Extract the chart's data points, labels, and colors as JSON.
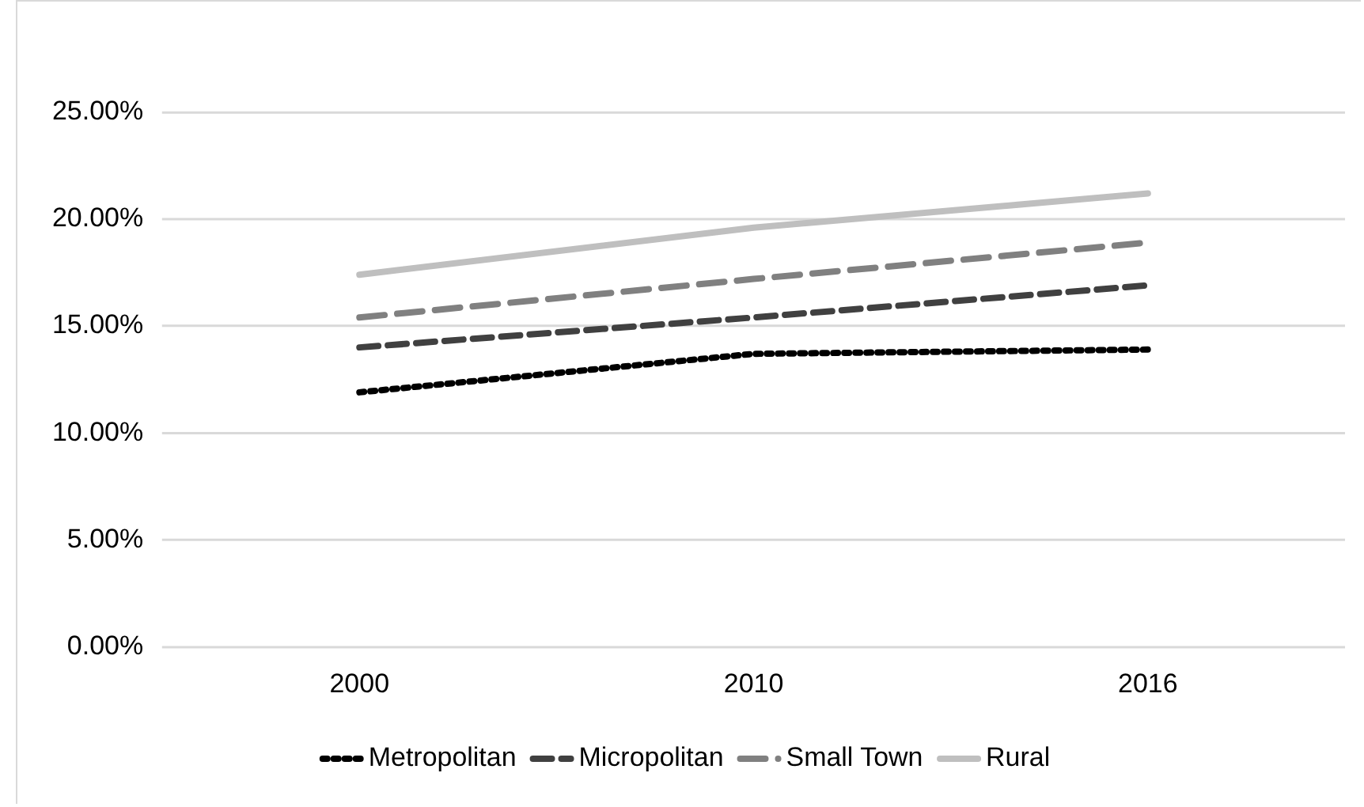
{
  "chart_data": {
    "type": "line",
    "categories": [
      "2000",
      "2010",
      "2016"
    ],
    "series": [
      {
        "name": "Metropolitan",
        "color": "#000000",
        "line_style": "dotted",
        "values": [
          11.9,
          13.7,
          13.9
        ]
      },
      {
        "name": "Micropolitan",
        "color": "#404040",
        "line_style": "dashed",
        "values": [
          14.0,
          15.4,
          16.9
        ]
      },
      {
        "name": "Small Town",
        "color": "#808080",
        "line_style": "dashed",
        "values": [
          15.4,
          17.2,
          18.9
        ]
      },
      {
        "name": "Rural",
        "color": "#bfbfbf",
        "line_style": "solid",
        "values": [
          17.4,
          19.6,
          21.2
        ]
      }
    ],
    "ylim": [
      0,
      25
    ],
    "yticks": [
      {
        "value": 0,
        "label": "0.00%"
      },
      {
        "value": 5,
        "label": "5.00%"
      },
      {
        "value": 10,
        "label": "10.00%"
      },
      {
        "value": 15,
        "label": "15.00%"
      },
      {
        "value": 20,
        "label": "20.00%"
      },
      {
        "value": 25,
        "label": "25.00%"
      }
    ],
    "grid": "y",
    "legend": "bottom",
    "marker": "none"
  }
}
